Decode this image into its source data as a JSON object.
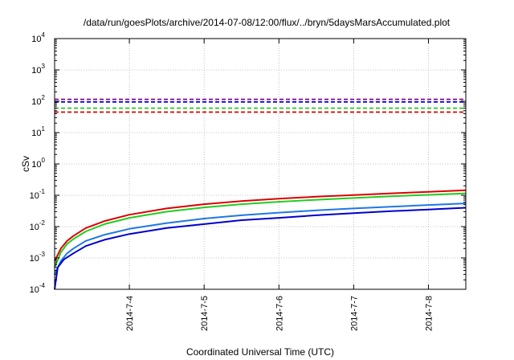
{
  "chart_data": {
    "type": "line",
    "title": "/data/run/goesPlots/archive/2014-07-08/12:00/flux/../bryn/5daysMarsAccumulated.plot",
    "xlabel": "Coordinated Universal Time (UTC)",
    "ylabel": "cSv",
    "xscale": "date",
    "yscale": "log",
    "xlim": [
      "2014-07-03T00:00",
      "2014-07-08T12:00"
    ],
    "ylim": [
      0.0001,
      10000
    ],
    "grid": true,
    "x_ticks": [
      "2014-7-4",
      "2014-7-5",
      "2014-7-6",
      "2014-7-7",
      "2014-7-8"
    ],
    "y_ticks": [
      {
        "base": "10",
        "exp": "-4",
        "value": 0.0001
      },
      {
        "base": "10",
        "exp": "-3",
        "value": 0.001
      },
      {
        "base": "10",
        "exp": "-2",
        "value": 0.01
      },
      {
        "base": "10",
        "exp": "-1",
        "value": 0.1
      },
      {
        "base": "10",
        "exp": "0",
        "value": 1
      },
      {
        "base": "10",
        "exp": "1",
        "value": 10
      },
      {
        "base": "10",
        "exp": "2",
        "value": 100
      },
      {
        "base": "10",
        "exp": "3",
        "value": 1000
      },
      {
        "base": "10",
        "exp": "4",
        "value": 10000
      }
    ],
    "threshold_lines": [
      {
        "value": 115,
        "color": "#8b008b",
        "style": "dashed"
      },
      {
        "value": 95,
        "color": "#0000cd",
        "style": "dashed"
      },
      {
        "value": 60,
        "color": "#22cc22",
        "style": "dashed"
      },
      {
        "value": 45,
        "color": "#dd0000",
        "style": "dashed"
      }
    ],
    "series": [
      {
        "color": "#dd0000",
        "x": [
          "2014-07-03T00:00",
          "2014-07-03T02:00",
          "2014-07-03T04:00",
          "2014-07-03T06:00",
          "2014-07-03T10:00",
          "2014-07-03T16:00",
          "2014-07-04T00:00",
          "2014-07-04T12:00",
          "2014-07-05T00:00",
          "2014-07-05T12:00",
          "2014-07-06T00:00",
          "2014-07-06T12:00",
          "2014-07-07T00:00",
          "2014-07-07T12:00",
          "2014-07-08T00:00",
          "2014-07-08T12:00"
        ],
        "y": [
          0.0008,
          0.002,
          0.0035,
          0.005,
          0.009,
          0.015,
          0.024,
          0.038,
          0.052,
          0.065,
          0.078,
          0.09,
          0.102,
          0.115,
          0.128,
          0.145
        ]
      },
      {
        "color": "#22cc22",
        "x": [
          "2014-07-03T00:00",
          "2014-07-03T02:00",
          "2014-07-03T04:00",
          "2014-07-03T06:00",
          "2014-07-03T10:00",
          "2014-07-03T16:00",
          "2014-07-04T00:00",
          "2014-07-04T12:00",
          "2014-07-05T00:00",
          "2014-07-05T12:00",
          "2014-07-06T00:00",
          "2014-07-06T12:00",
          "2014-07-07T00:00",
          "2014-07-07T12:00",
          "2014-07-08T00:00",
          "2014-07-08T12:00"
        ],
        "y": [
          0.0005,
          0.0015,
          0.0028,
          0.004,
          0.007,
          0.012,
          0.019,
          0.03,
          0.041,
          0.052,
          0.062,
          0.072,
          0.082,
          0.093,
          0.103,
          0.115
        ]
      },
      {
        "color": "#1e78e6",
        "x": [
          "2014-07-03T00:00",
          "2014-07-03T02:00",
          "2014-07-03T04:00",
          "2014-07-03T06:00",
          "2014-07-03T10:00",
          "2014-07-03T16:00",
          "2014-07-04T00:00",
          "2014-07-04T12:00",
          "2014-07-05T00:00",
          "2014-07-05T12:00",
          "2014-07-06T00:00",
          "2014-07-06T12:00",
          "2014-07-07T00:00",
          "2014-07-07T12:00",
          "2014-07-08T00:00",
          "2014-07-08T12:00"
        ],
        "y": [
          0.0003,
          0.0008,
          0.0014,
          0.002,
          0.0035,
          0.0055,
          0.0085,
          0.013,
          0.018,
          0.023,
          0.028,
          0.033,
          0.038,
          0.043,
          0.049,
          0.055
        ]
      },
      {
        "color": "#0000cd",
        "x": [
          "2014-07-03T00:00",
          "2014-07-03T01:00",
          "2014-07-03T03:00",
          "2014-07-03T06:00",
          "2014-07-03T10:00",
          "2014-07-03T16:00",
          "2014-07-04T00:00",
          "2014-07-04T12:00",
          "2014-07-05T00:00",
          "2014-07-05T12:00",
          "2014-07-06T00:00",
          "2014-07-06T12:00",
          "2014-07-07T00:00",
          "2014-07-07T12:00",
          "2014-07-08T00:00",
          "2014-07-08T12:00"
        ],
        "y": [
          0.0001,
          0.0005,
          0.0009,
          0.0014,
          0.0024,
          0.0038,
          0.0058,
          0.009,
          0.012,
          0.016,
          0.019,
          0.023,
          0.027,
          0.031,
          0.035,
          0.04
        ]
      }
    ]
  }
}
